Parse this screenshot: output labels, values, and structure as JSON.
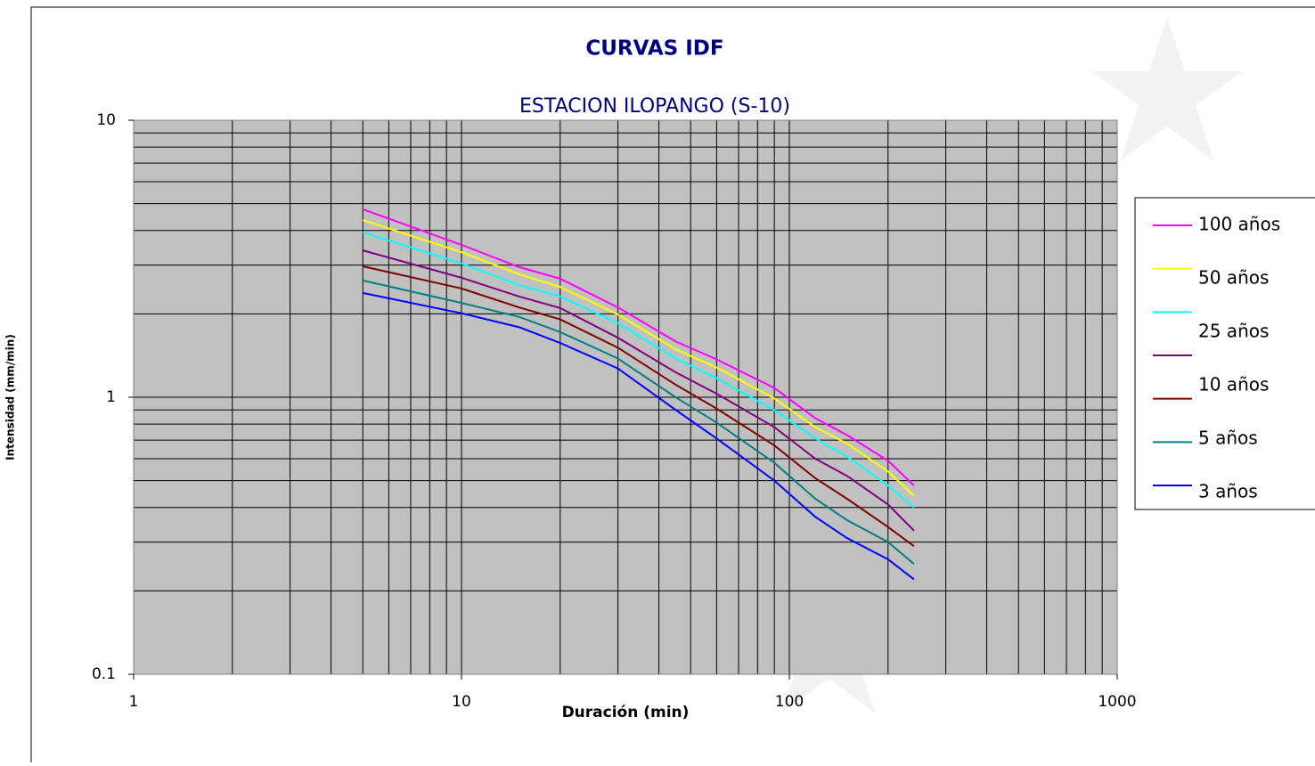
{
  "chart_data": {
    "type": "line",
    "title": "CURVAS IDF",
    "subtitle": "ESTACION ILOPANGO (S-10)",
    "x_label": "Duración (min)",
    "y_label": "Intensidad (mm/min)",
    "x_scale": "log",
    "y_scale": "log",
    "grid": true,
    "legend": "right",
    "x": [
      5,
      10,
      15,
      20,
      30,
      45,
      60,
      90,
      120,
      150,
      200,
      240
    ],
    "series": [
      {
        "name": "100 años",
        "color": "#ff00ff",
        "values": [
          4.77,
          3.55,
          2.95,
          2.68,
          2.11,
          1.59,
          1.37,
          1.08,
          0.84,
          0.73,
          0.59,
          0.48
        ]
      },
      {
        "name": "50 años",
        "color": "#ffff00",
        "values": [
          4.36,
          3.34,
          2.78,
          2.5,
          1.99,
          1.49,
          1.28,
          0.99,
          0.78,
          0.68,
          0.54,
          0.44
        ]
      },
      {
        "name": "25 años",
        "color": "#00ffff",
        "values": [
          3.94,
          3.04,
          2.54,
          2.31,
          1.85,
          1.38,
          1.17,
          0.9,
          0.71,
          0.61,
          0.48,
          0.4
        ]
      },
      {
        "name": null,
        "color": "#800080",
        "values": [
          3.39,
          2.7,
          2.31,
          2.1,
          1.64,
          1.23,
          1.03,
          0.78,
          0.6,
          0.52,
          0.41,
          0.33
        ]
      },
      {
        "name": "10 años",
        "color": "#800000",
        "values": [
          2.97,
          2.47,
          2.11,
          1.91,
          1.51,
          1.11,
          0.91,
          0.67,
          0.51,
          0.43,
          0.34,
          0.29
        ]
      },
      {
        "name": "5 años",
        "color": "#008080",
        "values": [
          2.64,
          2.19,
          1.95,
          1.72,
          1.38,
          1.0,
          0.81,
          0.58,
          0.43,
          0.36,
          0.3,
          0.25
        ]
      },
      {
        "name": "3 años",
        "color": "#0000ff",
        "values": [
          2.38,
          2.01,
          1.79,
          1.57,
          1.27,
          0.9,
          0.71,
          0.5,
          0.37,
          0.31,
          0.26,
          0.22
        ]
      }
    ],
    "xlim": [
      1,
      1000
    ],
    "ylim": [
      0.1,
      10
    ],
    "xticks": [
      1,
      10,
      100,
      1000
    ],
    "yticks": [
      0.1,
      1,
      10
    ],
    "x_minor_grid": [
      2,
      3,
      4,
      5,
      6,
      7,
      8,
      9,
      20,
      30,
      40,
      50,
      60,
      70,
      80,
      90,
      200,
      300,
      400,
      500,
      600,
      700,
      800,
      900
    ],
    "y_minor_grid": [
      0.2,
      0.3,
      0.4,
      0.5,
      0.6,
      0.7,
      0.8,
      0.9,
      2,
      3,
      4,
      5,
      6,
      7,
      8,
      9
    ]
  }
}
